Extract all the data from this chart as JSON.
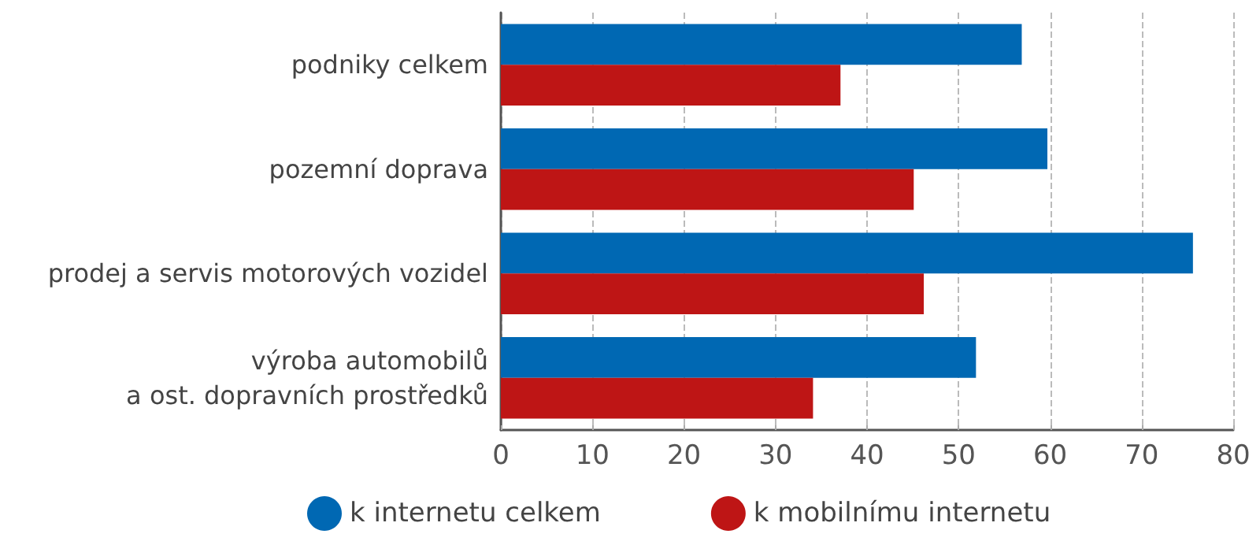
{
  "chart_data": {
    "type": "bar",
    "orientation": "horizontal",
    "categories": [
      "podniky celkem",
      "pozemní doprava",
      "prodej a servis motorových vozidel",
      "výroba automobilů\na ost. dopravních prostředků"
    ],
    "series": [
      {
        "name": "k internetu celkem",
        "color": "#0068b3",
        "values": [
          56.9,
          59.7,
          75.6,
          51.9
        ]
      },
      {
        "name": "k mobilnímu internetu",
        "color": "#be1515",
        "values": [
          37.1,
          45.1,
          46.2,
          34.1
        ]
      }
    ],
    "xlim": [
      0,
      80
    ],
    "xticks": [
      0,
      10,
      20,
      30,
      40,
      50,
      60,
      70,
      80
    ],
    "grid": "x",
    "legend": "bottom"
  }
}
